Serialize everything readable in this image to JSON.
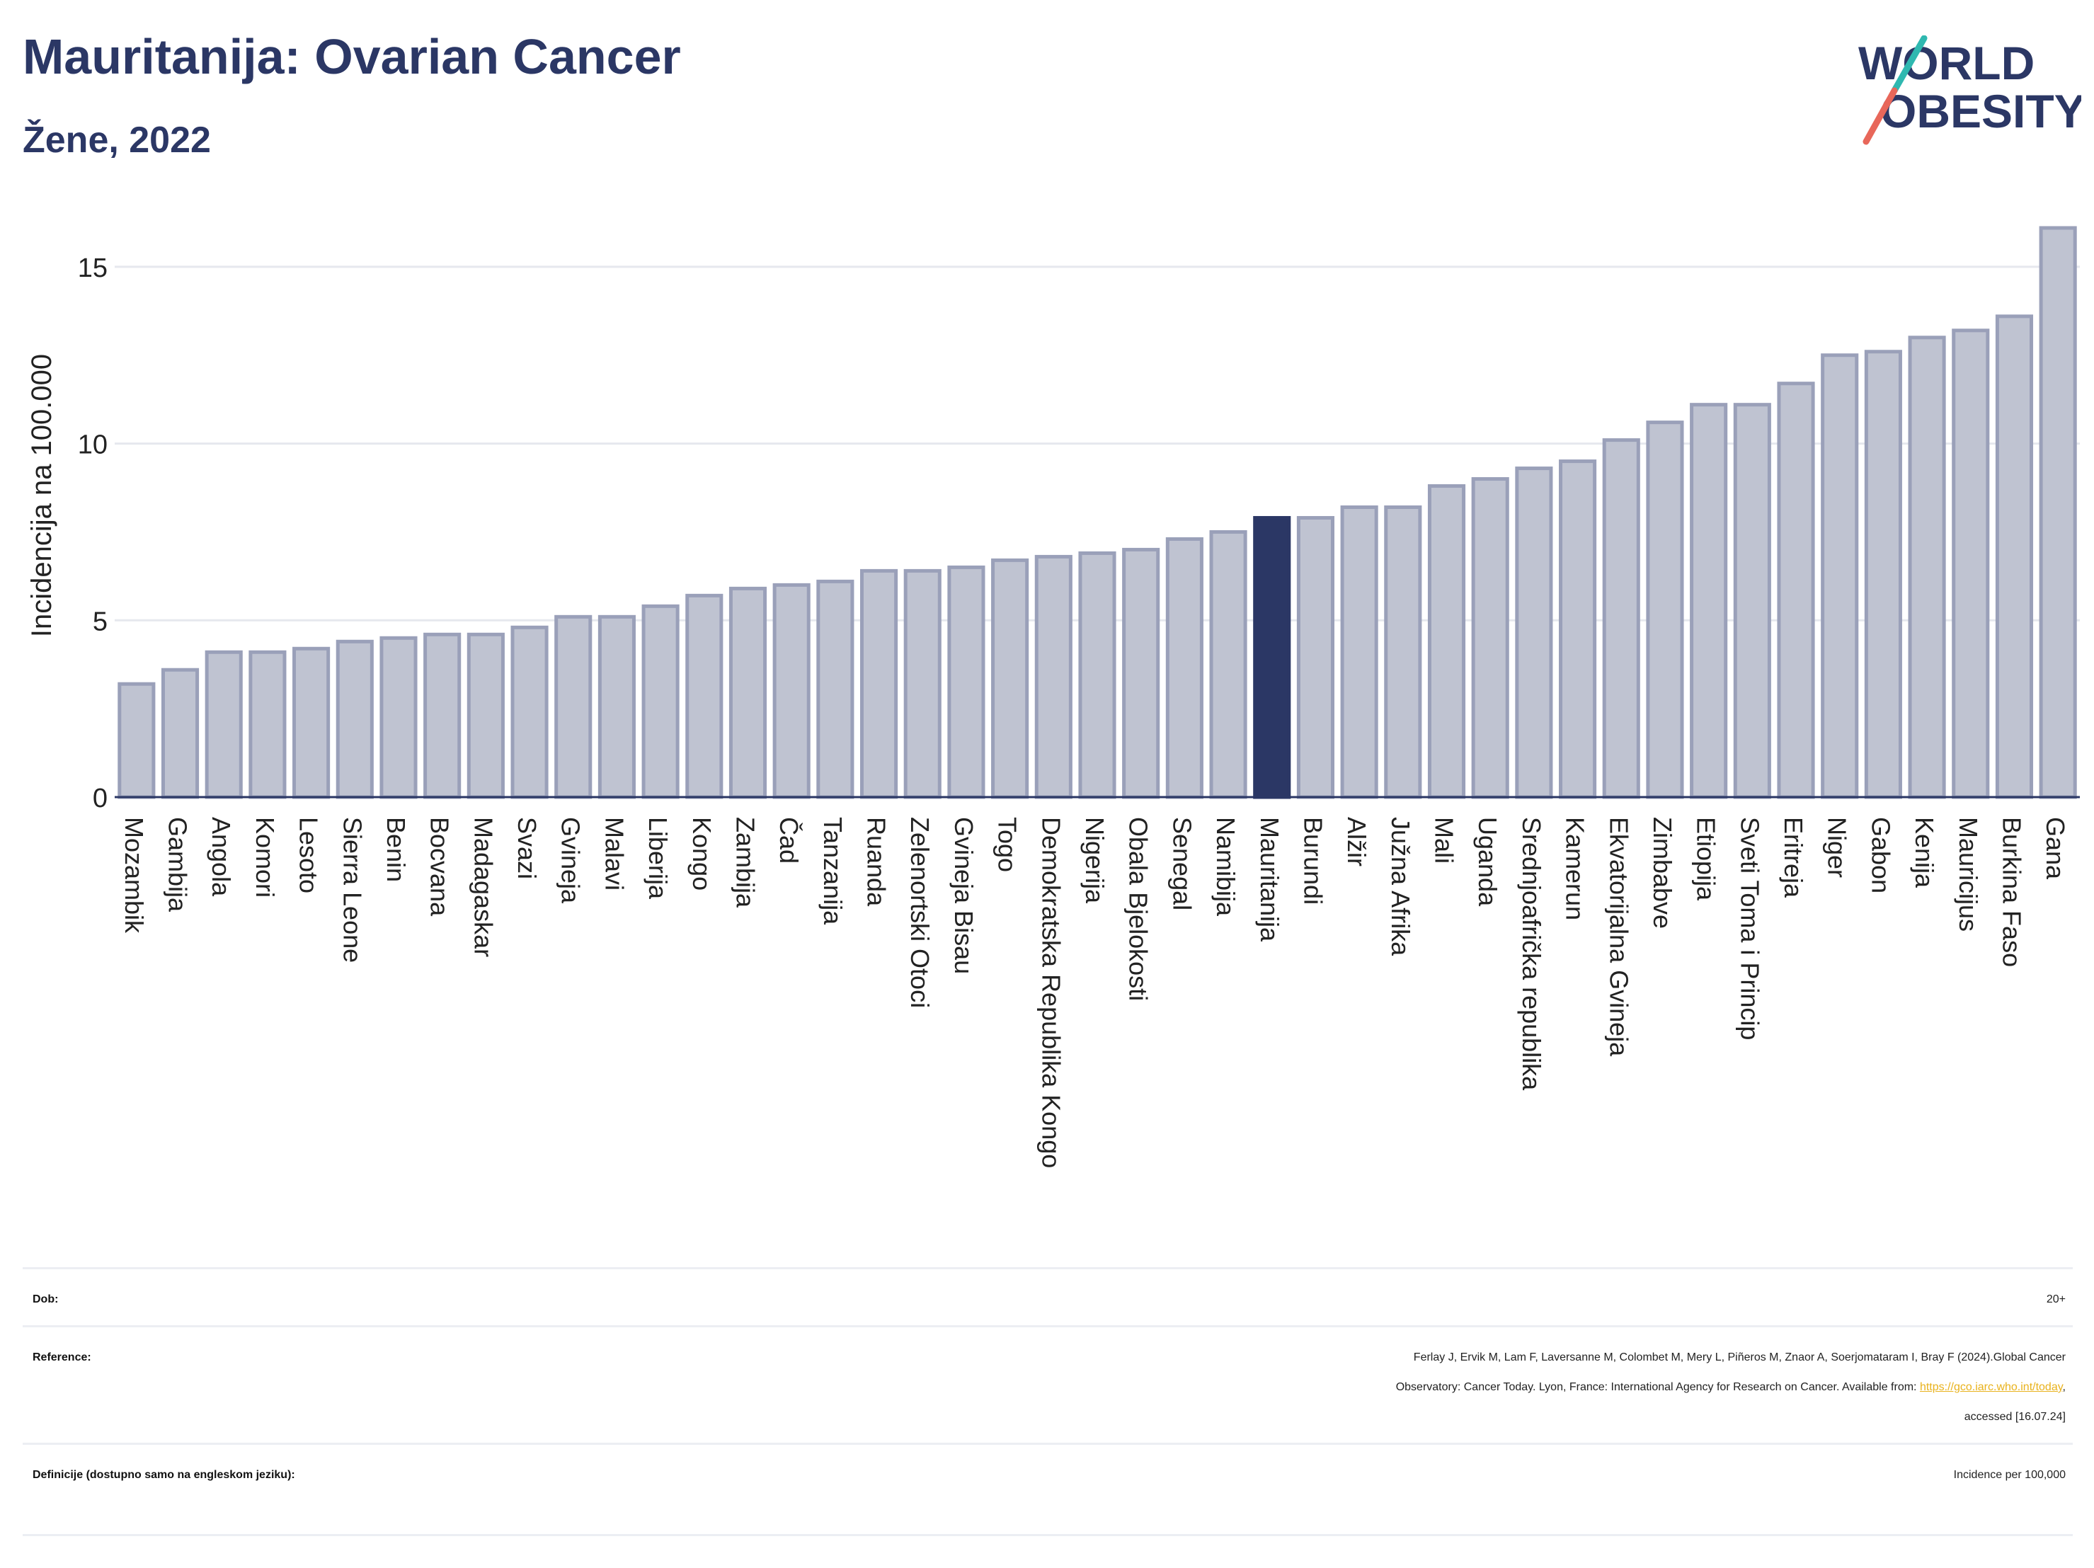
{
  "header": {
    "title": "Mauritanija: Ovarian Cancer",
    "subtitle": "Žene, 2022",
    "logo_line1": "WORLD",
    "logo_line2": "OBESITY"
  },
  "colors": {
    "bar": "#bfc3d1",
    "bar_stroke": "#9aa0b9",
    "highlight": "#2b3765",
    "title": "#2b3765",
    "link": "#e9b21c"
  },
  "chart_data": {
    "type": "bar",
    "ylabel": "Incidencija na 100.000",
    "ylim": [
      0,
      16.5
    ],
    "yticks": [
      0,
      5,
      10,
      15
    ],
    "grid": true,
    "highlight": "Mauritanija",
    "categories": [
      "Mozambik",
      "Gambija",
      "Angola",
      "Komori",
      "Lesoto",
      "Sierra Leone",
      "Benin",
      "Bocvana",
      "Madagaskar",
      "Svazi",
      "Gvineja",
      "Malavi",
      "Liberija",
      "Kongo",
      "Zambija",
      "Čad",
      "Tanzanija",
      "Ruanda",
      "Zelenortski Otoci",
      "Gvineja Bisau",
      "Togo",
      "Demokratska Republika Kongo",
      "Nigerija",
      "Obala Bjelokosti",
      "Senegal",
      "Namibija",
      "Mauritanija",
      "Burundi",
      "Alžir",
      "Južna Afrika",
      "Mali",
      "Uganda",
      "Srednjoafrička republika",
      "Kamerun",
      "Ekvatorijalna Gvineja",
      "Zimbabve",
      "Etiopija",
      "Sveti Toma i Princip",
      "Eritreja",
      "Niger",
      "Gabon",
      "Kenija",
      "Mauricijus",
      "Burkina Faso",
      "Gana"
    ],
    "values": [
      3.2,
      3.6,
      4.1,
      4.1,
      4.2,
      4.4,
      4.5,
      4.6,
      4.6,
      4.8,
      5.1,
      5.1,
      5.4,
      5.7,
      5.9,
      6.0,
      6.1,
      6.4,
      6.4,
      6.5,
      6.7,
      6.8,
      6.9,
      7.0,
      7.3,
      7.5,
      7.9,
      7.9,
      8.2,
      8.2,
      8.8,
      9.0,
      9.3,
      9.5,
      10.1,
      10.6,
      11.1,
      11.1,
      11.7,
      12.5,
      12.6,
      13.0,
      13.2,
      13.6,
      16.1
    ]
  },
  "meta": {
    "dob_label": "Dob:",
    "dob_value": "20+",
    "reference_label": "Reference:",
    "reference_line1": "Ferlay J, Ervik M, Lam F, Laversanne M, Colombet M, Mery L, Piñeros M, Znaor A, Soerjomataram I, Bray F (2024).Global Cancer",
    "reference_line2_pre": "Observatory: Cancer Today. Lyon, France: International Agency for Research on Cancer. Available from: ",
    "reference_link": "https://gco.iarc.who.int/today",
    "reference_line2_post": ",",
    "reference_line3": "accessed [16.07.24]",
    "definitions_label": "Definicije (dostupno samo na engleskom jeziku):",
    "definitions_value": "Incidence per 100,000"
  }
}
